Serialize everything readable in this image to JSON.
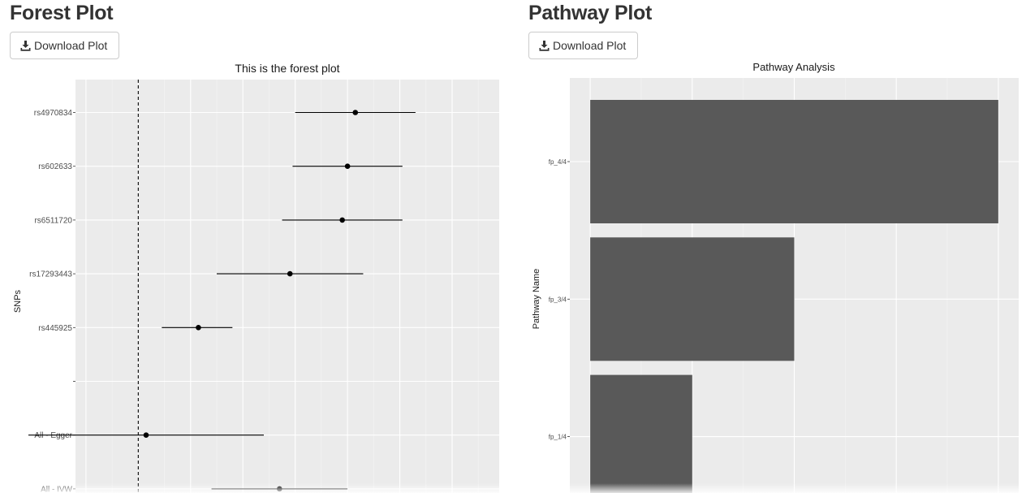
{
  "forest": {
    "heading": "Forest Plot",
    "download_label": "Download Plot",
    "icon": "download-icon",
    "chart_data": {
      "type": "scatter",
      "title": "This is the forest plot",
      "xlabel": "",
      "ylabel": "SNPs",
      "xlim": [
        -1.2,
        6.9
      ],
      "reference_line_x": 0,
      "categories": [
        "rs4970834",
        "rs602633",
        "rs6511720",
        "rs17293443",
        "rs445925",
        "",
        "All - Egger",
        "All - IVW"
      ],
      "points": [
        {
          "label": "rs4970834",
          "estimate": 4.15,
          "lower": 3.0,
          "upper": 5.3
        },
        {
          "label": "rs602633",
          "estimate": 4.0,
          "lower": 2.95,
          "upper": 5.05
        },
        {
          "label": "rs6511720",
          "estimate": 3.9,
          "lower": 2.75,
          "upper": 5.05
        },
        {
          "label": "rs17293443",
          "estimate": 2.9,
          "lower": 1.5,
          "upper": 4.3
        },
        {
          "label": "rs445925",
          "estimate": 1.15,
          "lower": 0.45,
          "upper": 1.8
        },
        {
          "label": "All - Egger",
          "estimate": 0.15,
          "lower": -2.1,
          "upper": 2.4
        },
        {
          "label": "All - IVW",
          "estimate": 2.7,
          "lower": 1.4,
          "upper": 4.0
        }
      ]
    }
  },
  "pathway": {
    "heading": "Pathway Plot",
    "download_label": "Download Plot",
    "icon": "download-icon",
    "chart_data": {
      "type": "bar",
      "orientation": "horizontal",
      "title": "Pathway Analysis",
      "xlabel": "",
      "ylabel": "Pathway Name",
      "categories": [
        "fp_4/4",
        "fp_3/4",
        "fp_1/4"
      ],
      "values": [
        4,
        2,
        1
      ],
      "xlim": [
        -0.2,
        4.2
      ],
      "bar_color": "#595959"
    }
  },
  "theme": {
    "panel_bg": "#ebebeb",
    "grid_major": "#ffffff",
    "grid_minor": "#f5f5f5",
    "point_color": "#000000",
    "axis_text": "#4d4d4d"
  }
}
